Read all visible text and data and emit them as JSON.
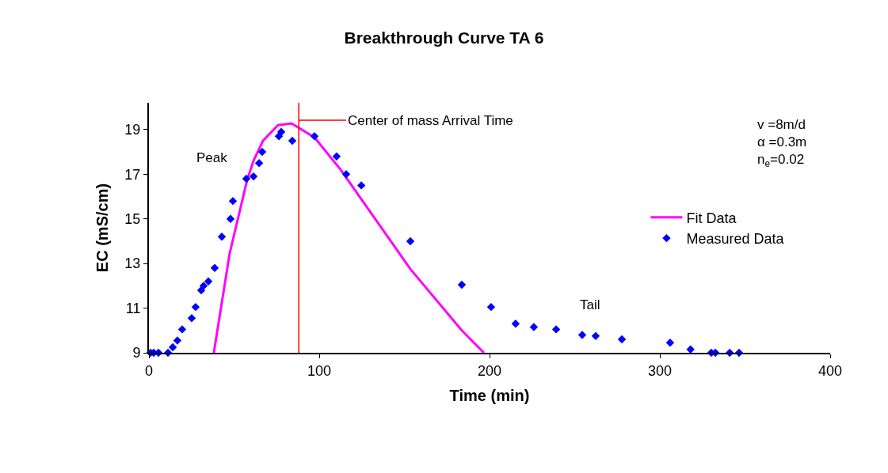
{
  "chart_data": {
    "type": "scatter",
    "title": "Breakthrough Curve TA 6",
    "xlabel": "Time (min)",
    "ylabel": "EC (mS/cm)",
    "series": [
      {
        "name": "Fit Data",
        "type": "line",
        "color": "#ff00ff",
        "marker": "none",
        "line_style": "solid",
        "x": [
          38.1,
          47.4,
          57.7,
          61.4,
          67,
          75.8,
          83.7,
          97.2,
          112.6,
          153.5,
          183.7,
          196.7
        ],
        "values": [
          9.0,
          13.45,
          16.75,
          17.6,
          18.5,
          19.2,
          19.28,
          18.65,
          17.2,
          12.75,
          10.0,
          9.0
        ]
      },
      {
        "name": "Measured Data",
        "color": "#0000ff",
        "marker": "diamond",
        "x": [
          0.9,
          2.8,
          5.6,
          11.2,
          14.0,
          16.7,
          19.5,
          25.1,
          27.4,
          30.7,
          32.1,
          34.9,
          38.6,
          42.8,
          47.9,
          49.3,
          57.2,
          61.4,
          64.7,
          66.5,
          76.3,
          77.7,
          84.2,
          97.2,
          110.2,
          115.8,
          124.7,
          153.5,
          183.7,
          200.9,
          215.3,
          226.0,
          239.1,
          254.4,
          262.3,
          277.7,
          306,
          318,
          330.2,
          332.6,
          341,
          346.5
        ],
        "values": [
          9.0,
          9.0,
          9.0,
          9.0,
          9.25,
          9.55,
          10.05,
          10.55,
          11.05,
          11.8,
          12.0,
          12.2,
          12.8,
          14.2,
          15.0,
          15.8,
          16.8,
          16.9,
          17.5,
          18.0,
          18.7,
          18.9,
          18.5,
          18.7,
          17.8,
          17.0,
          16.5,
          14.0,
          12.05,
          11.05,
          10.3,
          10.15,
          10.05,
          9.8,
          9.75,
          9.6,
          9.45,
          9.15,
          9.0,
          9.0,
          9.0,
          9.0
        ]
      }
    ],
    "ref_lines": [
      {
        "axis": "x",
        "value": 88,
        "label": "Center of mass Arrival Time",
        "color": "#ff0000",
        "line_style": "solid"
      }
    ],
    "annotations": [
      "Peak",
      "Tail",
      "v =8m/d\nα =0.3m\nn$_{e}$=0.02"
    ],
    "xlim": [
      0,
      400
    ],
    "xticks": [
      0,
      100,
      200,
      300,
      400
    ],
    "ylim": [
      9,
      20.2
    ],
    "yticks": [
      9,
      11,
      13,
      15,
      17,
      19
    ],
    "legend": "right"
  }
}
